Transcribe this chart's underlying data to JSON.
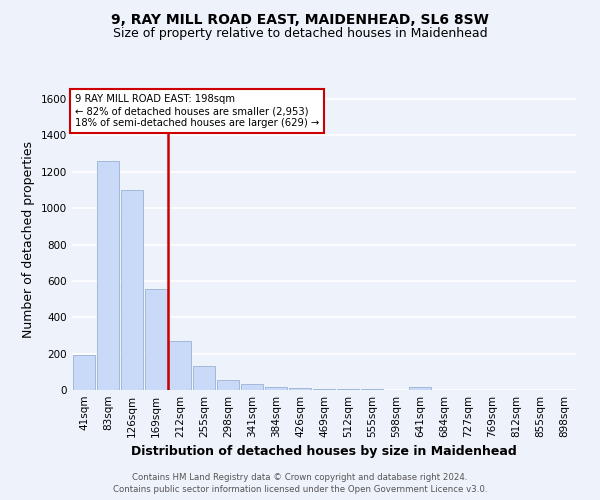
{
  "title": "9, RAY MILL ROAD EAST, MAIDENHEAD, SL6 8SW",
  "subtitle": "Size of property relative to detached houses in Maidenhead",
  "xlabel": "Distribution of detached houses by size in Maidenhead",
  "ylabel": "Number of detached properties",
  "categories": [
    "41sqm",
    "83sqm",
    "126sqm",
    "169sqm",
    "212sqm",
    "255sqm",
    "298sqm",
    "341sqm",
    "384sqm",
    "426sqm",
    "469sqm",
    "512sqm",
    "555sqm",
    "598sqm",
    "641sqm",
    "684sqm",
    "727sqm",
    "769sqm",
    "812sqm",
    "855sqm",
    "898sqm"
  ],
  "values": [
    190,
    1260,
    1100,
    555,
    270,
    130,
    57,
    35,
    18,
    9,
    5,
    5,
    5,
    0,
    18,
    0,
    0,
    0,
    0,
    0,
    0
  ],
  "bar_color": "#c9daf8",
  "bar_edge_color": "#a4b8d8",
  "vline_x_index": 4,
  "vline_color": "#cc0000",
  "property_size": 198,
  "annotation_text1": "9 RAY MILL ROAD EAST: 198sqm",
  "annotation_text2": "← 82% of detached houses are smaller (2,953)",
  "annotation_text3": "18% of semi-detached houses are larger (629) →",
  "annotation_box_color": "#ffffff",
  "annotation_box_edge": "#cc0000",
  "ylim": [
    0,
    1650
  ],
  "yticks": [
    0,
    200,
    400,
    600,
    800,
    1000,
    1200,
    1400,
    1600
  ],
  "footer_line1": "Contains HM Land Registry data © Crown copyright and database right 2024.",
  "footer_line2": "Contains public sector information licensed under the Open Government Licence v3.0.",
  "bg_color": "#eef2fb",
  "grid_color": "#ffffff",
  "title_fontsize": 10,
  "subtitle_fontsize": 9,
  "tick_fontsize": 7.5,
  "label_fontsize": 9
}
